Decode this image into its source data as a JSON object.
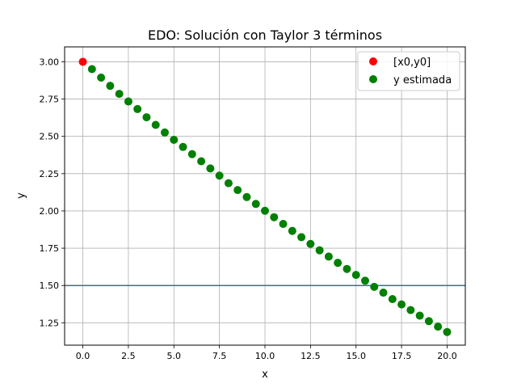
{
  "chart_data": {
    "type": "scatter",
    "title": "EDO: Solución con Taylor 3 términos",
    "xlabel": "x",
    "ylabel": "y",
    "xlim": [
      -1.0,
      21.0
    ],
    "ylim": [
      1.1,
      3.1
    ],
    "xticks": [
      0.0,
      2.5,
      5.0,
      7.5,
      10.0,
      12.5,
      15.0,
      17.5,
      20.0
    ],
    "xtick_labels": [
      "0.0",
      "2.5",
      "5.0",
      "7.5",
      "10.0",
      "12.5",
      "15.0",
      "17.5",
      "20.0"
    ],
    "yticks": [
      1.25,
      1.5,
      1.75,
      2.0,
      2.25,
      2.5,
      2.75,
      3.0
    ],
    "ytick_labels": [
      "1.25",
      "1.50",
      "1.75",
      "2.00",
      "2.25",
      "2.50",
      "2.75",
      "3.00"
    ],
    "grid": true,
    "legend_position": "top-right",
    "hline": {
      "y": 1.5,
      "color": "#1f77b4"
    },
    "series": [
      {
        "name": "[x0,y0]",
        "color": "#ff0000",
        "x": [
          0.0
        ],
        "y": [
          3.0
        ]
      },
      {
        "name": "y estimada",
        "color": "#008000",
        "x": [
          0.5,
          1.0,
          1.5,
          2.0,
          2.5,
          3.0,
          3.5,
          4.0,
          4.5,
          5.0,
          5.5,
          6.0,
          6.5,
          7.0,
          7.5,
          8.0,
          8.5,
          9.0,
          9.5,
          10.0,
          10.5,
          11.0,
          11.5,
          12.0,
          12.5,
          13.0,
          13.5,
          14.0,
          14.5,
          15.0,
          15.5,
          16.0,
          16.5,
          17.0,
          17.5,
          18.0,
          18.5,
          19.0,
          19.5,
          20.0
        ],
        "y": [
          2.951,
          2.894,
          2.839,
          2.785,
          2.734,
          2.683,
          2.628,
          2.577,
          2.526,
          2.477,
          2.429,
          2.381,
          2.333,
          2.285,
          2.237,
          2.186,
          2.14,
          2.093,
          2.047,
          2.001,
          1.958,
          1.913,
          1.866,
          1.824,
          1.779,
          1.736,
          1.694,
          1.652,
          1.611,
          1.571,
          1.532,
          1.491,
          1.452,
          1.409,
          1.373,
          1.335,
          1.298,
          1.261,
          1.224,
          1.188
        ]
      }
    ]
  }
}
